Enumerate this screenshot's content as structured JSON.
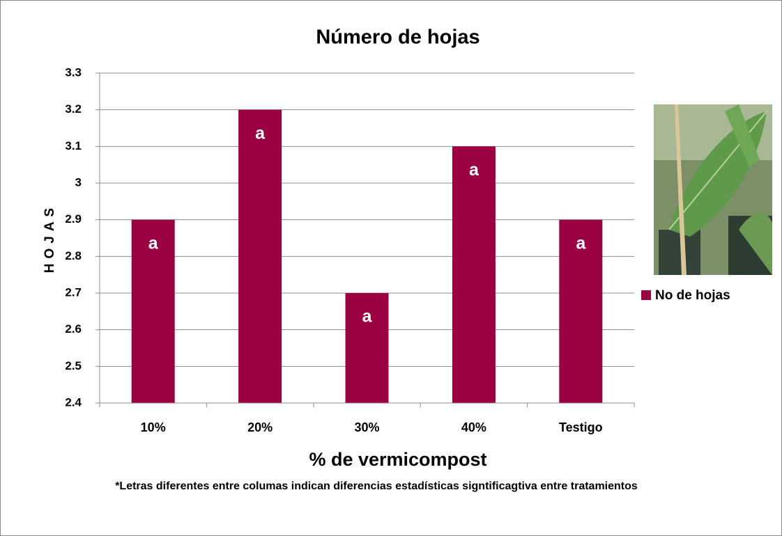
{
  "chart_data": {
    "type": "bar",
    "title": "Número de hojas",
    "x_label": "% de vermicompost",
    "y_label": "HOJAS",
    "categories": [
      "10%",
      "20%",
      "30%",
      "40%",
      "Testigo"
    ],
    "series": [
      {
        "name": "No de hojas",
        "color": "#9b0043",
        "values": [
          2.9,
          3.2,
          2.7,
          3.1,
          2.9
        ]
      }
    ],
    "annotations": [
      "a",
      "a",
      "a",
      "a",
      "a"
    ],
    "ylim": [
      2.4,
      3.3
    ],
    "yticks": [
      2.4,
      2.5,
      2.6,
      2.7,
      2.8,
      2.9,
      3,
      3.1,
      3.2,
      3.3
    ],
    "grid": true,
    "legend": "right",
    "footnote": "*Letras diferentes entre columas indican diferencias estadísticas signtificagtiva entre tratamientos"
  }
}
